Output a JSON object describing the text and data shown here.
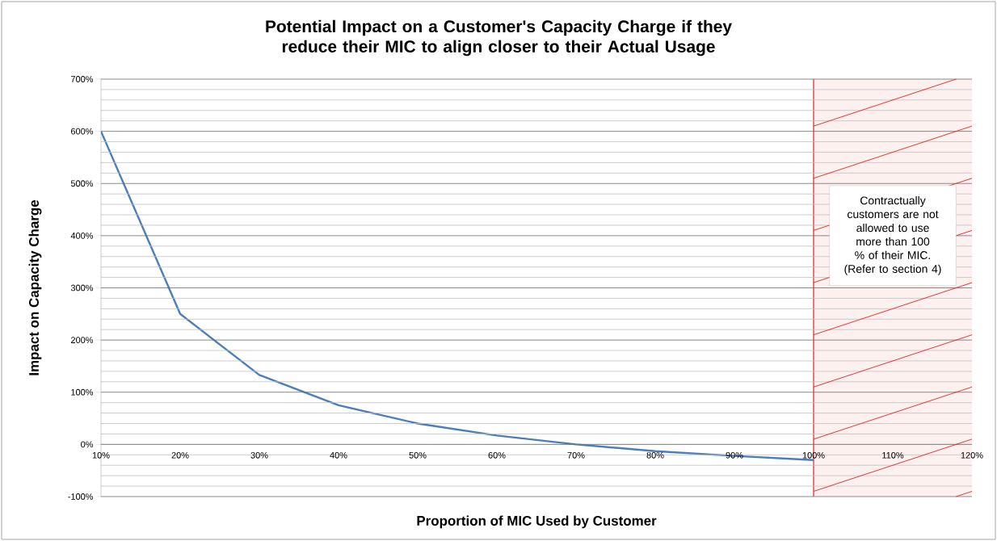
{
  "chart_data": {
    "type": "line",
    "title": "Potential Impact on a Customer's Capacity Charge if they reduce their MIC to align closer to their Actual Usage",
    "xlabel": "Proportion of MIC Used by Customer",
    "ylabel": "Impact on  Capacity Charge",
    "x": [
      10,
      20,
      30,
      40,
      50,
      60,
      70,
      80,
      90,
      100
    ],
    "series": [
      {
        "color": "#4a7ebb",
        "values": [
          600,
          250,
          133,
          75,
          40,
          17,
          0,
          -13,
          -22,
          -30
        ]
      }
    ],
    "xlim": [
      10,
      120
    ],
    "xticks": [
      {
        "value": 10,
        "label": "10%"
      },
      {
        "value": 20,
        "label": "20%"
      },
      {
        "value": 30,
        "label": "30%"
      },
      {
        "value": 40,
        "label": "40%"
      },
      {
        "value": 50,
        "label": "50%"
      },
      {
        "value": 60,
        "label": "60%"
      },
      {
        "value": 70,
        "label": "70%"
      },
      {
        "value": 80,
        "label": "80%"
      },
      {
        "value": 90,
        "label": "90%"
      },
      {
        "value": 100,
        "label": "100%"
      },
      {
        "value": 110,
        "label": "110%"
      },
      {
        "value": 120,
        "label": "120%"
      }
    ],
    "ylim": [
      -100,
      700
    ],
    "yticks": [
      {
        "value": -100,
        "label": "-100%"
      },
      {
        "value": 0,
        "label": "0%"
      },
      {
        "value": 100,
        "label": "100%"
      },
      {
        "value": 200,
        "label": "200%"
      },
      {
        "value": 300,
        "label": "300%"
      },
      {
        "value": 400,
        "label": "400%"
      },
      {
        "value": 500,
        "label": "500%"
      },
      {
        "value": 600,
        "label": "600%"
      },
      {
        "value": 700,
        "label": "700%"
      }
    ],
    "ref_lines": [
      {
        "axis": "x",
        "value": 100,
        "color": "#e8201c"
      }
    ],
    "bands": [
      {
        "axis": "x",
        "from": 100,
        "to": 120,
        "color": "#fdf1f0",
        "label": "Contractually customers are  not allowed to use more than  100 % of their MIC. (Refer to section 4)"
      }
    ],
    "grid": "y",
    "marker": "none",
    "line_style": "solid"
  }
}
